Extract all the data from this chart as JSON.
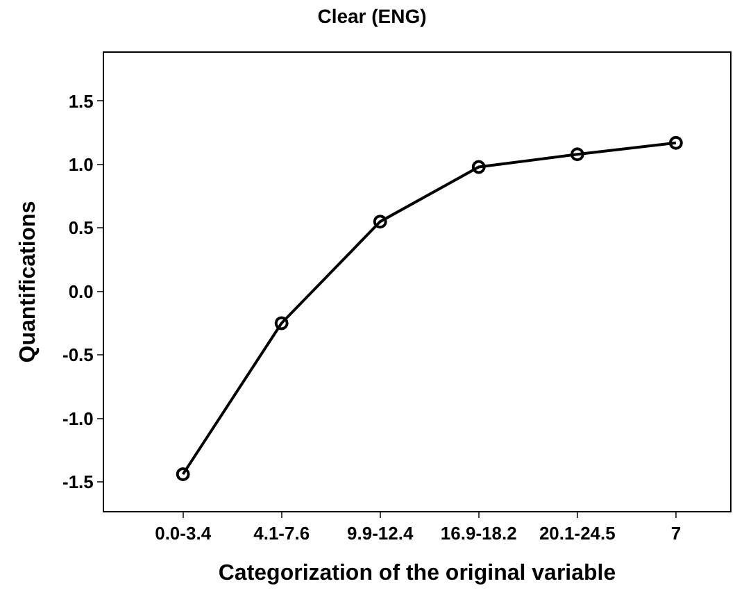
{
  "chart_data": {
    "type": "line",
    "title": "Clear (ENG)",
    "xlabel": "Categorization of the original variable",
    "ylabel": "Quantifications",
    "categories": [
      "0.0-3.4",
      "4.1-7.6",
      "9.9-12.4",
      "16.9-18.2",
      "20.1-24.5",
      "7"
    ],
    "series": [
      {
        "color": "#000000",
        "values": [
          -1.44,
          -0.25,
          0.55,
          0.98,
          1.08,
          1.17
        ]
      }
    ],
    "ylim": [
      -1.73,
      1.88
    ],
    "yticks": [
      -1.5,
      {
        "value": -1,
        "label": "-1.0"
      },
      -0.5,
      {
        "value": 0,
        "label": "0.0"
      },
      0.5,
      {
        "value": 1,
        "label": "1.0"
      },
      1.5
    ],
    "marker": "circle",
    "line_style": "solid"
  }
}
